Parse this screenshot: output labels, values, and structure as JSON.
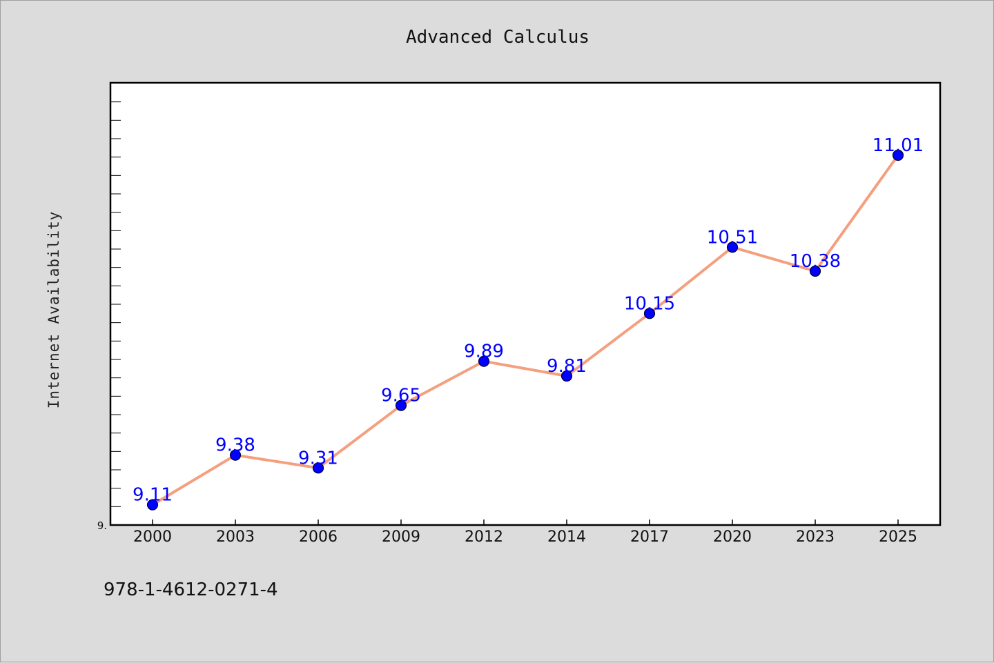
{
  "chart_data": {
    "type": "line",
    "title": "Advanced Calculus",
    "xlabel": "",
    "ylabel": "Internet Availability",
    "categories": [
      "2000",
      "2003",
      "2006",
      "2009",
      "2012",
      "2014",
      "2017",
      "2020",
      "2023",
      "2025"
    ],
    "series": [
      {
        "values": [
          9.11,
          9.38,
          9.31,
          9.65,
          9.89,
          9.81,
          10.15,
          10.51,
          10.38,
          11.01
        ],
        "labels": [
          "9.11",
          "9.38",
          "9.31",
          "9.65",
          "9.89",
          "9.81",
          "10.15",
          "10.51",
          "10.38",
          "11.01"
        ]
      }
    ],
    "ylim": [
      9.0,
      11.4
    ],
    "y_tick_label": "9.",
    "grid": false,
    "colors": {
      "line": "#f4a07f",
      "marker": "#0000ff",
      "marker_edge": "#000033",
      "data_label": "#0000ff",
      "plot_background": "#ffffff",
      "figure_background": "#dcdcdc"
    }
  },
  "footer": {
    "text": "978-1-4612-0271-4"
  }
}
